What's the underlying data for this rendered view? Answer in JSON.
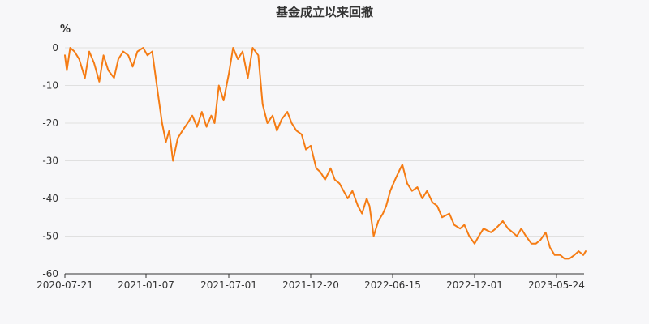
{
  "chart_data": {
    "type": "line",
    "title": "基金成立以来回撤",
    "ylabel": "%",
    "xlabel": "",
    "ylim": [
      -60,
      0
    ],
    "yticks": [
      0,
      -10,
      -20,
      -30,
      -40,
      -50,
      -60
    ],
    "yticklabels": [
      "0",
      "-10",
      "-20",
      "-30",
      "-40",
      "-50",
      "-60"
    ],
    "xticks": [
      "2020-07-21",
      "2021-01-07",
      "2021-07-01",
      "2021-12-20",
      "2022-06-15",
      "2022-12-01",
      "2023-05-24"
    ],
    "grid": "horizontal",
    "legend": "none",
    "color": "#f57c14",
    "series": [
      {
        "x": [
          "2020-07-21",
          "2020-07-25",
          "2020-08-01",
          "2020-08-10",
          "2020-08-20",
          "2020-09-01",
          "2020-09-10",
          "2020-09-20",
          "2020-10-01",
          "2020-10-10",
          "2020-10-20",
          "2020-11-01",
          "2020-11-10",
          "2020-11-20",
          "2020-12-01",
          "2020-12-10",
          "2020-12-20",
          "2021-01-01",
          "2021-01-10",
          "2021-01-20",
          "2021-02-01",
          "2021-02-10",
          "2021-02-18",
          "2021-02-25",
          "2021-03-05",
          "2021-03-15",
          "2021-03-25",
          "2021-04-05",
          "2021-04-15",
          "2021-04-25",
          "2021-05-05",
          "2021-05-15",
          "2021-05-25",
          "2021-06-01",
          "2021-06-10",
          "2021-06-20",
          "2021-07-01",
          "2021-07-10",
          "2021-07-20",
          "2021-07-30",
          "2021-08-10",
          "2021-08-20",
          "2021-09-01",
          "2021-09-10",
          "2021-09-20",
          "2021-10-01",
          "2021-10-10",
          "2021-10-20",
          "2021-11-01",
          "2021-11-10",
          "2021-11-20",
          "2021-12-01",
          "2021-12-10",
          "2021-12-20",
          "2022-01-01",
          "2022-01-10",
          "2022-01-20",
          "2022-02-01",
          "2022-02-10",
          "2022-02-20",
          "2022-03-01",
          "2022-03-10",
          "2022-03-20",
          "2022-04-01",
          "2022-04-10",
          "2022-04-20",
          "2022-04-26",
          "2022-05-05",
          "2022-05-15",
          "2022-05-25",
          "2022-06-01",
          "2022-06-10",
          "2022-06-20",
          "2022-07-01",
          "2022-07-05",
          "2022-07-15",
          "2022-07-25",
          "2022-08-05",
          "2022-08-15",
          "2022-08-25",
          "2022-09-05",
          "2022-09-15",
          "2022-09-25",
          "2022-10-10",
          "2022-10-20",
          "2022-11-01",
          "2022-11-10",
          "2022-11-20",
          "2022-12-01",
          "2022-12-10",
          "2022-12-20",
          "2023-01-05",
          "2023-01-15",
          "2023-01-30",
          "2023-02-10",
          "2023-02-20",
          "2023-03-01",
          "2023-03-10",
          "2023-03-20",
          "2023-04-01",
          "2023-04-10",
          "2023-04-20",
          "2023-05-01",
          "2023-05-10",
          "2023-05-20",
          "2023-05-24",
          "2023-06-01",
          "2023-06-10",
          "2023-06-20",
          "2023-07-01",
          "2023-07-10",
          "2023-07-20",
          "2023-07-25"
        ],
        "values": [
          -2,
          -6,
          0,
          -1,
          -3,
          -8,
          -1,
          -4,
          -9,
          -2,
          -6,
          -8,
          -3,
          -1,
          -2,
          -5,
          -1,
          0,
          -2,
          -1,
          -12,
          -20,
          -25,
          -22,
          -30,
          -24,
          -22,
          -20,
          -18,
          -21,
          -17,
          -21,
          -18,
          -20,
          -10,
          -14,
          -7,
          0,
          -3,
          -1,
          -8,
          0,
          -2,
          -15,
          -20,
          -18,
          -22,
          -19,
          -17,
          -20,
          -22,
          -23,
          -27,
          -26,
          -32,
          -33,
          -35,
          -32,
          -35,
          -36,
          -38,
          -40,
          -38,
          -42,
          -44,
          -40,
          -42,
          -50,
          -46,
          -44,
          -42,
          -38,
          -35,
          -32,
          -31,
          -36,
          -38,
          -37,
          -40,
          -38,
          -41,
          -42,
          -45,
          -44,
          -47,
          -48,
          -47,
          -50,
          -52,
          -50,
          -48,
          -49,
          -48,
          -46,
          -48,
          -49,
          -50,
          -48,
          -50,
          -52,
          -52,
          -51,
          -49,
          -53,
          -55,
          -55,
          -55,
          -56,
          -56,
          -55,
          -54,
          -55,
          -54
        ]
      }
    ]
  }
}
